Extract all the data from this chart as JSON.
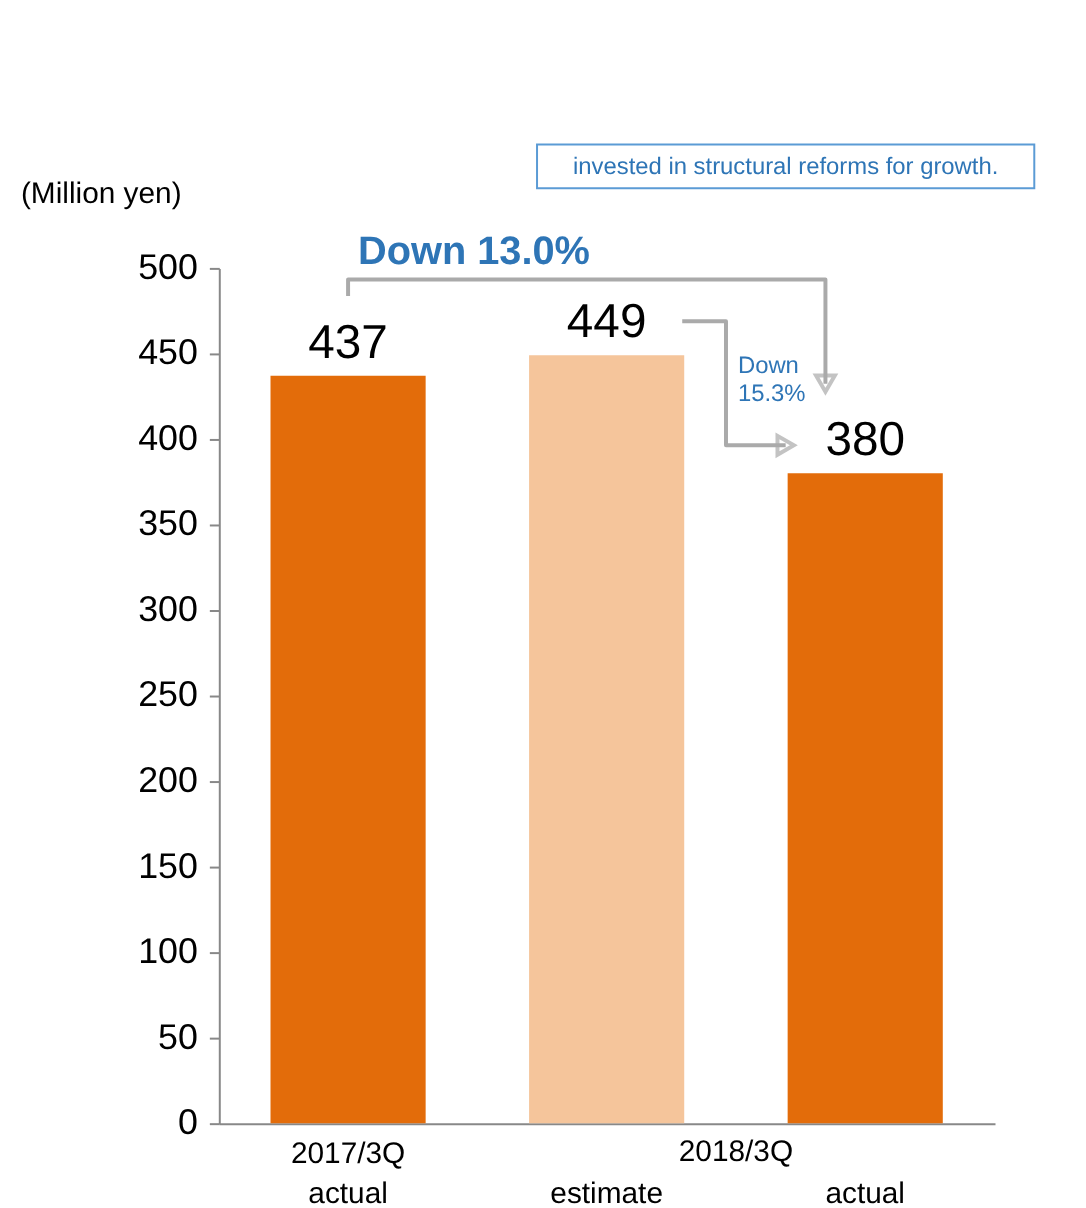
{
  "chart_data": {
    "type": "bar",
    "ylabel": "(Million yen)",
    "categories": [
      "2017/3Q actual",
      "estimate",
      "actual"
    ],
    "values": [
      437,
      449,
      380
    ],
    "colors": [
      "#e36c0a",
      "#f5c59b",
      "#e36c0a"
    ],
    "data_labels": true,
    "ylim": [
      0,
      500
    ],
    "yticks": [
      0,
      50,
      100,
      150,
      200,
      250,
      300,
      350,
      400,
      450,
      500
    ],
    "grid": false,
    "annotations": [
      "Down 13.0%",
      "Down 15.3%",
      "2018/3Q",
      "invested in structural reforms for growth."
    ]
  }
}
